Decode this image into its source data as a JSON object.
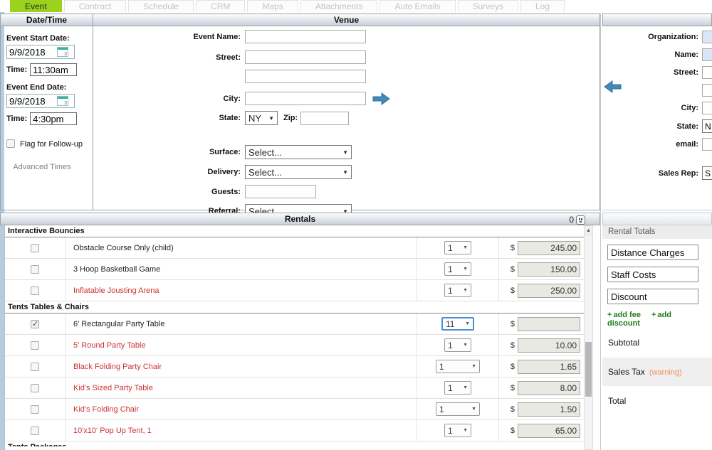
{
  "tabs": [
    {
      "label": "Event",
      "active": true
    },
    {
      "label": "Contract",
      "active": false
    },
    {
      "label": "Schedule",
      "active": false
    },
    {
      "label": "CRM",
      "active": false
    },
    {
      "label": "Maps",
      "active": false
    },
    {
      "label": "Attachments",
      "active": false
    },
    {
      "label": "Auto Emails",
      "active": false
    },
    {
      "label": "Surveys",
      "active": false
    },
    {
      "label": "Log",
      "active": false
    }
  ],
  "sections": {
    "datetime_title": "Date/Time",
    "venue_title": "Venue",
    "rentals_title": "Rentals",
    "rentals_count": "0"
  },
  "datetime": {
    "start_label": "Event Start Date:",
    "start_date": "9/9/2018",
    "time_label": "Time:",
    "start_time": "11:30am",
    "end_label": "Event End Date:",
    "end_date": "9/9/2018",
    "end_time": "4:30pm",
    "flag_label": "Flag for Follow-up",
    "advanced_label": "Advanced Times"
  },
  "venue": {
    "event_name_label": "Event Name:",
    "street_label": "Street:",
    "city_label": "City:",
    "state_label": "State:",
    "state_value": "NY",
    "zip_label": "Zip:",
    "surface_label": "Surface:",
    "delivery_label": "Delivery:",
    "guests_label": "Guests:",
    "referral_label": "Referral:",
    "select_placeholder": "Select..."
  },
  "contact": {
    "organization_label": "Organization:",
    "name_label": "Name:",
    "street_label": "Street:",
    "city_label": "City:",
    "state_label": "State:",
    "state_value": "N",
    "email_label": "email:",
    "salesrep_label": "Sales Rep:",
    "salesrep_value": "S"
  },
  "rentals": {
    "currency": "$",
    "categories": [
      {
        "name": "Interactive Bouncies",
        "partial": false,
        "items": [
          {
            "name": "Obstacle Course Only (child)",
            "red": false,
            "checked": false,
            "qty": "1",
            "wide": false,
            "focused": false,
            "price": "245.00"
          },
          {
            "name": "3 Hoop Basketball Game",
            "red": false,
            "checked": false,
            "qty": "1",
            "wide": false,
            "focused": false,
            "price": "150.00"
          },
          {
            "name": "Inflatable Jousting Arena",
            "red": true,
            "checked": false,
            "qty": "1",
            "wide": false,
            "focused": false,
            "price": "250.00"
          }
        ]
      },
      {
        "name": "Tents Tables & Chairs",
        "partial": false,
        "items": [
          {
            "name": "6' Rectangular Party Table",
            "red": false,
            "checked": true,
            "qty": "11",
            "wide": false,
            "focused": true,
            "price": ""
          },
          {
            "name": "5' Round Party Table",
            "red": true,
            "checked": false,
            "qty": "1",
            "wide": false,
            "focused": false,
            "price": "10.00"
          },
          {
            "name": "Black Folding Party Chair",
            "red": true,
            "checked": false,
            "qty": "1",
            "wide": true,
            "focused": false,
            "price": "1.65"
          },
          {
            "name": "Kid's Sized Party Table",
            "red": true,
            "checked": false,
            "qty": "1",
            "wide": false,
            "focused": false,
            "price": "8.00"
          },
          {
            "name": "Kid's Folding Chair",
            "red": true,
            "checked": false,
            "qty": "1",
            "wide": true,
            "focused": false,
            "price": "1.50"
          },
          {
            "name": "10'x10' Pop Up Tent, 1",
            "red": true,
            "checked": false,
            "qty": "1",
            "wide": false,
            "focused": false,
            "price": "65.00"
          }
        ]
      },
      {
        "name": "Tents Packages",
        "partial": true,
        "items": []
      }
    ]
  },
  "totals": {
    "title": "Rental Totals",
    "fields": [
      "Distance Charges",
      "Staff Costs",
      "Discount"
    ],
    "add_fee": "add fee",
    "add_discount": "add discount",
    "subtotal_label": "Subtotal",
    "sales_tax_label": "Sales Tax",
    "warning_label": "(warning)",
    "total_label": "Total"
  },
  "colors": {
    "active_tab": "#9bd21c",
    "red_item": "#cc3333",
    "focus_blue": "#4a90d9",
    "arrow_blue": "#4288bc",
    "warning_orange": "#ef8f55",
    "add_link_green": "#1e7d1e"
  }
}
